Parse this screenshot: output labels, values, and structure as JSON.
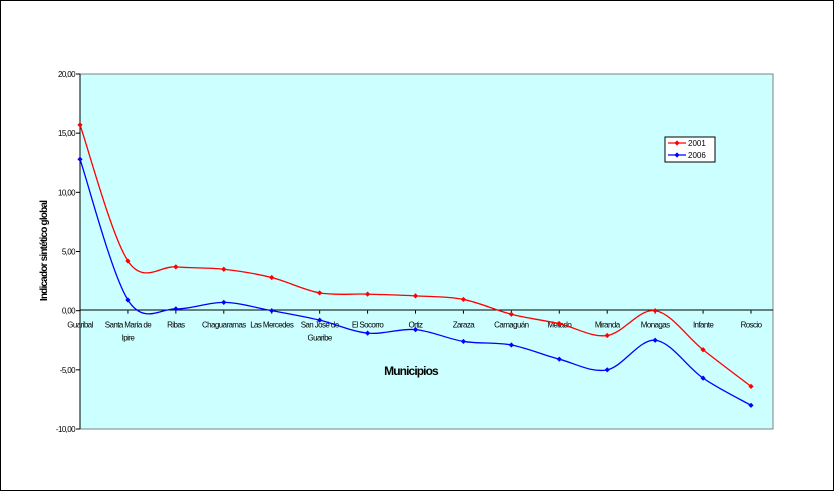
{
  "chart_data": {
    "type": "line",
    "title": "",
    "xlabel": "Municipios",
    "ylabel": "Indicador sintético global",
    "ylim": [
      -10,
      20
    ],
    "yticks": [
      "20,00",
      "15,00",
      "10,00",
      "5,00",
      "0,00",
      "-5,00",
      "-10,00"
    ],
    "ytick_values": [
      20,
      15,
      10,
      5,
      0,
      -5,
      -10
    ],
    "grid": false,
    "legend_position": "right",
    "plot_background": "#ccffff",
    "categories": [
      "Guaribal",
      "Santa María de Ipire",
      "Ribas",
      "Chaguaramas",
      "Las Mercedes",
      "San José de Guaribe",
      "El Socorro",
      "Ortiz",
      "Zaraza",
      "Camaguán",
      "Mellado",
      "Miranda",
      "Monagas",
      "Infante",
      "Roscio"
    ],
    "series": [
      {
        "name": "2001",
        "color": "#ff0000",
        "values": [
          15.7,
          4.2,
          3.7,
          3.5,
          2.8,
          1.5,
          1.4,
          1.25,
          0.95,
          -0.3,
          -1.1,
          -2.1,
          0.0,
          -3.3,
          -6.4
        ]
      },
      {
        "name": "2006",
        "color": "#0000ff",
        "values": [
          12.8,
          0.9,
          0.15,
          0.7,
          0.0,
          -0.8,
          -1.9,
          -1.6,
          -2.6,
          -2.9,
          -4.1,
          -5.0,
          -2.5,
          -5.7,
          -8.0
        ]
      }
    ]
  }
}
